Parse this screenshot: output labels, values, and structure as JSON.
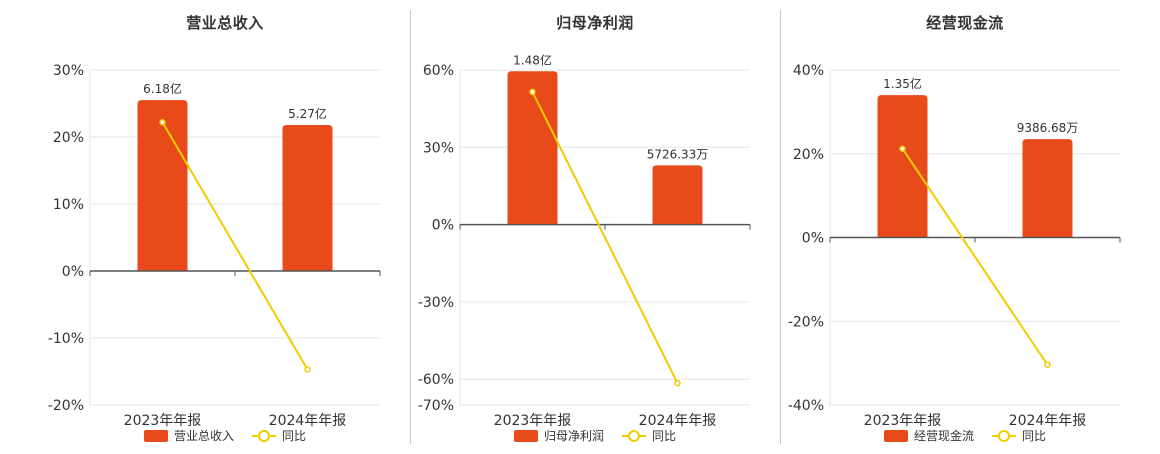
{
  "colors": {
    "bar": "#e84a1a",
    "line": "#f0cc00",
    "grid": "#e6e6e6",
    "axis": "#555555",
    "text": "#333333"
  },
  "chart_data": [
    {
      "type": "bar+line",
      "title": "营业总收入",
      "categories": [
        "2023年年报",
        "2024年年报"
      ],
      "series": [
        {
          "name": "营业总收入",
          "kind": "bar",
          "values": [
            25.5,
            21.8
          ],
          "labels": [
            "6.18亿",
            "5.27亿"
          ]
        },
        {
          "name": "同比",
          "kind": "line",
          "values": [
            22.2,
            -14.7
          ]
        }
      ],
      "y_ticks": [
        30,
        20,
        10,
        0,
        -10,
        -20
      ],
      "y_tick_labels": [
        "30%",
        "20%",
        "10%",
        "0%",
        "-10%",
        "-20%"
      ],
      "ylim": [
        -20,
        30
      ],
      "grid": true,
      "legend": "bottom"
    },
    {
      "type": "bar+line",
      "title": "归母净利润",
      "categories": [
        "2023年年报",
        "2024年年报"
      ],
      "series": [
        {
          "name": "归母净利润",
          "kind": "bar",
          "values": [
            59.5,
            23.0
          ],
          "labels": [
            "1.48亿",
            "5726.33万"
          ]
        },
        {
          "name": "同比",
          "kind": "line",
          "values": [
            51.5,
            -61.5
          ]
        }
      ],
      "y_ticks": [
        60,
        30,
        0,
        -30,
        -60,
        -70
      ],
      "y_tick_labels": [
        "60%",
        "30%",
        "0%",
        "-30%",
        "-60%",
        "-70%"
      ],
      "ylim": [
        -70,
        60
      ],
      "grid": true,
      "legend": "bottom"
    },
    {
      "type": "bar+line",
      "title": "经营现金流",
      "categories": [
        "2023年年报",
        "2024年年报"
      ],
      "series": [
        {
          "name": "经营现金流",
          "kind": "bar",
          "values": [
            34.0,
            23.5
          ],
          "labels": [
            "1.35亿",
            "9386.68万"
          ]
        },
        {
          "name": "同比",
          "kind": "line",
          "values": [
            21.2,
            -30.4
          ]
        }
      ],
      "y_ticks": [
        40,
        20,
        0,
        -20,
        -40
      ],
      "y_tick_labels": [
        "40%",
        "20%",
        "0%",
        "-20%",
        "-40%"
      ],
      "ylim": [
        -40,
        40
      ],
      "grid": true,
      "legend": "bottom"
    }
  ]
}
